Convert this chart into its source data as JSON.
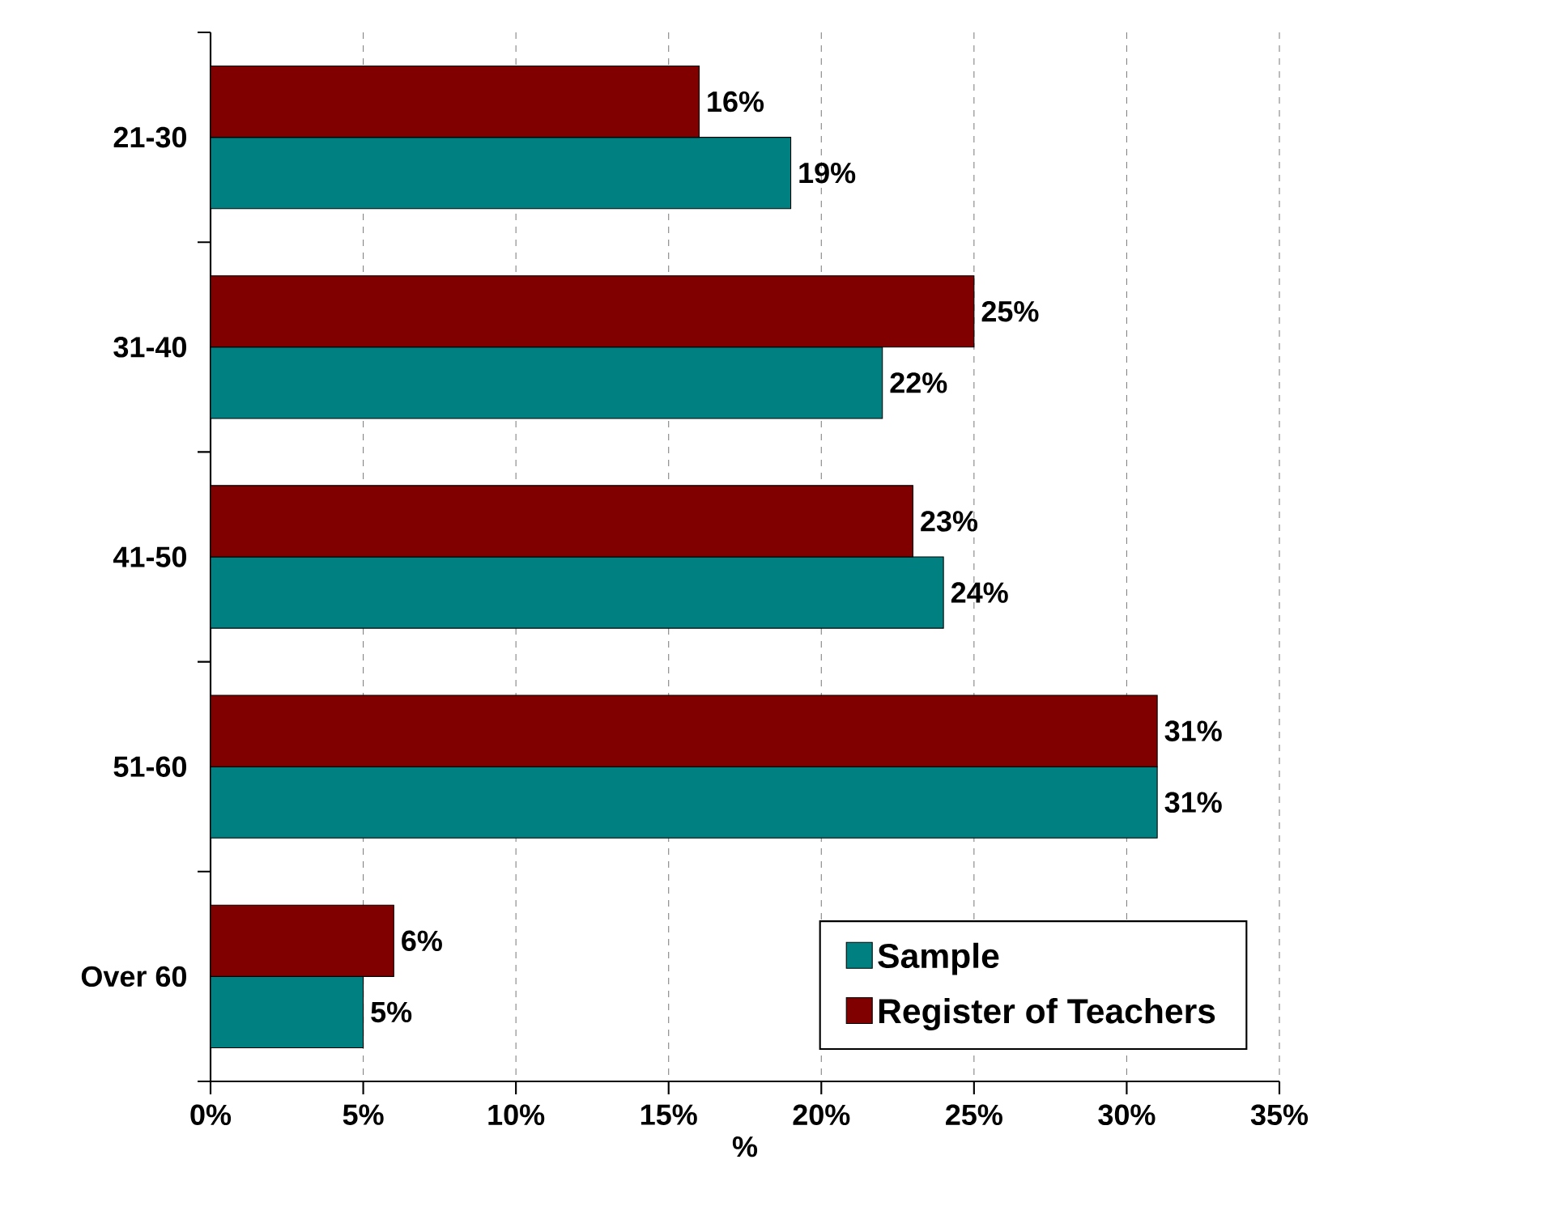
{
  "chart_data": {
    "type": "bar",
    "orientation": "horizontal",
    "xlabel": "%",
    "categories": [
      "21-30",
      "31-40",
      "41-50",
      "51-60",
      "Over 60"
    ],
    "series": [
      {
        "name": "Sample",
        "color": "#008080",
        "values": [
          19,
          22,
          24,
          31,
          5
        ],
        "value_labels": [
          "19%",
          "22%",
          "24%",
          "31%",
          "5%"
        ]
      },
      {
        "name": "Register of Teachers",
        "color": "#800000",
        "values": [
          16,
          25,
          23,
          31,
          6
        ],
        "value_labels": [
          "16%",
          "25%",
          "23%",
          "31%",
          "6%"
        ]
      }
    ],
    "xlim": [
      0,
      35
    ],
    "xticks": [
      {
        "value": 0,
        "label": "0%"
      },
      {
        "value": 5,
        "label": "5%"
      },
      {
        "value": 10,
        "label": "10%"
      },
      {
        "value": 15,
        "label": "15%"
      },
      {
        "value": 20,
        "label": "20%"
      },
      {
        "value": 25,
        "label": "25%"
      },
      {
        "value": 30,
        "label": "30%"
      },
      {
        "value": 35,
        "label": "35%"
      }
    ],
    "grid": "x",
    "legend": "bottom right"
  }
}
